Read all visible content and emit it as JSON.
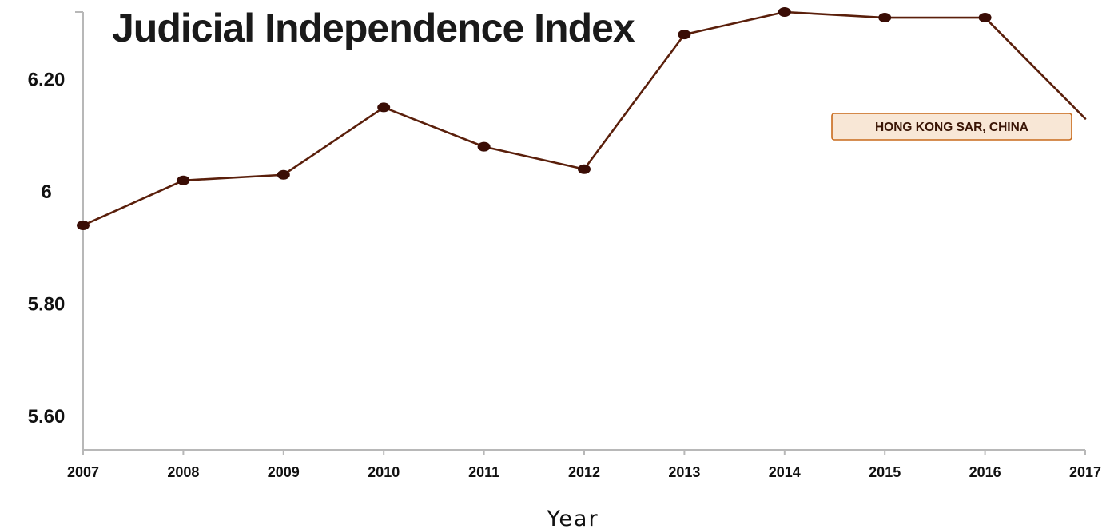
{
  "chart_data": {
    "type": "line",
    "title": "Judicial Independence Index",
    "xlabel": "Year",
    "ylabel": "",
    "x": [
      "2007",
      "2008",
      "2009",
      "2010",
      "2011",
      "2012",
      "2013",
      "2014",
      "2015",
      "2016",
      "2017"
    ],
    "series": [
      {
        "name": "HONG KONG SAR, CHINA",
        "values": [
          5.94,
          6.02,
          6.03,
          6.15,
          6.08,
          6.04,
          6.28,
          6.32,
          6.31,
          6.31,
          6.13
        ]
      }
    ],
    "yticks": [
      "5.60",
      "5.80",
      "6",
      "6.20"
    ],
    "ytick_values": [
      5.6,
      5.8,
      6.0,
      6.2
    ],
    "ylim": [
      5.54,
      6.32
    ],
    "grid": false,
    "annotation": "HONG KONG SAR, CHINA",
    "colors": {
      "line": "#5a1f0b",
      "marker": "#3a0d05",
      "axis": "#b8b8b8",
      "annotation_fill": "#f8e7d6",
      "annotation_border": "#c86a1c"
    }
  }
}
